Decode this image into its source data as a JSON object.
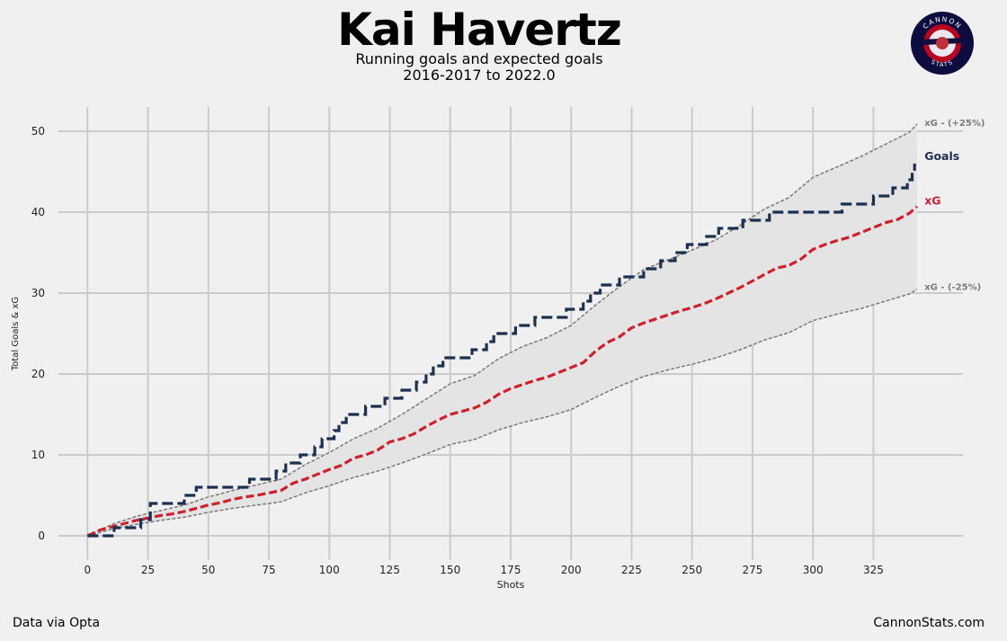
{
  "header": {
    "title": "Kai Havertz",
    "subtitle_line1": "Running goals and expected goals",
    "subtitle_line2": "2016-2017 to 2022.0"
  },
  "logo": {
    "top_text": "CANNON",
    "bottom_text": "STATS",
    "colors": {
      "outer": "#0d0c3f",
      "ring": "#b8001f",
      "inner": "#e8e8ee"
    }
  },
  "footer": {
    "left": "Data via Opta",
    "right": "CannonStats.com"
  },
  "colors": {
    "background": "#f0f0f0",
    "goals": "#1c3050",
    "xg": "#d0202e",
    "band": "#7a7a7a",
    "band_fill": "#e4e4e4",
    "grid": "#cbcbcb"
  },
  "chart_data": {
    "type": "line",
    "xlabel": "Shots",
    "ylabel": "Total Goals & xG",
    "xlim": [
      -12,
      362
    ],
    "ylim": [
      -3,
      53
    ],
    "xticks": [
      0,
      25,
      50,
      75,
      100,
      125,
      150,
      175,
      200,
      225,
      250,
      275,
      300,
      325
    ],
    "yticks": [
      0,
      10,
      20,
      30,
      40,
      50
    ],
    "grid": true,
    "line_labels": {
      "goals": "Goals",
      "xg": "xG",
      "upper": "xG - (+25%)",
      "lower": "xG - (-25%)"
    },
    "goals": {
      "step": true,
      "points": [
        [
          0,
          0
        ],
        [
          11,
          0
        ],
        [
          11,
          1
        ],
        [
          17,
          1
        ],
        [
          22,
          1
        ],
        [
          22,
          2
        ],
        [
          26,
          2
        ],
        [
          26,
          4
        ],
        [
          36,
          4
        ],
        [
          40,
          4
        ],
        [
          40,
          5
        ],
        [
          45,
          5
        ],
        [
          45,
          6
        ],
        [
          67,
          6
        ],
        [
          67,
          7
        ],
        [
          78,
          7
        ],
        [
          78,
          8
        ],
        [
          82,
          8
        ],
        [
          82,
          9
        ],
        [
          88,
          9
        ],
        [
          88,
          10
        ],
        [
          94,
          10
        ],
        [
          94,
          11
        ],
        [
          97,
          11
        ],
        [
          97,
          12
        ],
        [
          102,
          12
        ],
        [
          102,
          13
        ],
        [
          104,
          13
        ],
        [
          104,
          14
        ],
        [
          107,
          14
        ],
        [
          107,
          15
        ],
        [
          115,
          15
        ],
        [
          115,
          16
        ],
        [
          123,
          16
        ],
        [
          123,
          17
        ],
        [
          130,
          17
        ],
        [
          130,
          18
        ],
        [
          136,
          18
        ],
        [
          136,
          19
        ],
        [
          140,
          19
        ],
        [
          140,
          20
        ],
        [
          143,
          20
        ],
        [
          143,
          21
        ],
        [
          147,
          21
        ],
        [
          147,
          22
        ],
        [
          159,
          22
        ],
        [
          159,
          23
        ],
        [
          165,
          23
        ],
        [
          165,
          24
        ],
        [
          168,
          24
        ],
        [
          168,
          25
        ],
        [
          177,
          25
        ],
        [
          177,
          26
        ],
        [
          185,
          26
        ],
        [
          185,
          27
        ],
        [
          198,
          27
        ],
        [
          198,
          28
        ],
        [
          205,
          28
        ],
        [
          205,
          29
        ],
        [
          208,
          29
        ],
        [
          208,
          30
        ],
        [
          212,
          30
        ],
        [
          212,
          31
        ],
        [
          220,
          31
        ],
        [
          220,
          32
        ],
        [
          230,
          32
        ],
        [
          230,
          33
        ],
        [
          237,
          33
        ],
        [
          237,
          34
        ],
        [
          243,
          34
        ],
        [
          243,
          35
        ],
        [
          248,
          35
        ],
        [
          248,
          36
        ],
        [
          256,
          36
        ],
        [
          256,
          37
        ],
        [
          261,
          37
        ],
        [
          261,
          38
        ],
        [
          271,
          38
        ],
        [
          271,
          39
        ],
        [
          282,
          39
        ],
        [
          282,
          40
        ],
        [
          312,
          40
        ],
        [
          312,
          41
        ],
        [
          325,
          41
        ],
        [
          325,
          42
        ],
        [
          333,
          42
        ],
        [
          333,
          43
        ],
        [
          339,
          43
        ],
        [
          339,
          44
        ],
        [
          341,
          44
        ],
        [
          341,
          45
        ],
        [
          342,
          45
        ],
        [
          342,
          46
        ]
      ]
    },
    "xg": {
      "points": [
        [
          0,
          0
        ],
        [
          5,
          0.7
        ],
        [
          10,
          1.1
        ],
        [
          15,
          1.5
        ],
        [
          20,
          1.9
        ],
        [
          25,
          2.2
        ],
        [
          30,
          2.5
        ],
        [
          35,
          2.7
        ],
        [
          40,
          3.0
        ],
        [
          45,
          3.4
        ],
        [
          50,
          3.8
        ],
        [
          55,
          4.1
        ],
        [
          60,
          4.5
        ],
        [
          65,
          4.8
        ],
        [
          70,
          5.0
        ],
        [
          75,
          5.3
        ],
        [
          80,
          5.6
        ],
        [
          85,
          6.5
        ],
        [
          90,
          7.0
        ],
        [
          95,
          7.6
        ],
        [
          100,
          8.2
        ],
        [
          105,
          8.7
        ],
        [
          110,
          9.6
        ],
        [
          115,
          10.0
        ],
        [
          120,
          10.6
        ],
        [
          125,
          11.6
        ],
        [
          130,
          12.0
        ],
        [
          135,
          12.6
        ],
        [
          140,
          13.5
        ],
        [
          145,
          14.3
        ],
        [
          150,
          15.0
        ],
        [
          155,
          15.4
        ],
        [
          160,
          15.8
        ],
        [
          165,
          16.5
        ],
        [
          170,
          17.5
        ],
        [
          175,
          18.2
        ],
        [
          180,
          18.7
        ],
        [
          185,
          19.2
        ],
        [
          190,
          19.6
        ],
        [
          195,
          20.2
        ],
        [
          200,
          20.8
        ],
        [
          205,
          21.4
        ],
        [
          210,
          22.8
        ],
        [
          215,
          23.9
        ],
        [
          220,
          24.6
        ],
        [
          225,
          25.7
        ],
        [
          230,
          26.3
        ],
        [
          235,
          26.8
        ],
        [
          240,
          27.3
        ],
        [
          245,
          27.8
        ],
        [
          250,
          28.2
        ],
        [
          255,
          28.7
        ],
        [
          260,
          29.3
        ],
        [
          265,
          30.0
        ],
        [
          270,
          30.7
        ],
        [
          275,
          31.5
        ],
        [
          280,
          32.3
        ],
        [
          285,
          33.1
        ],
        [
          290,
          33.4
        ],
        [
          295,
          34.2
        ],
        [
          300,
          35.4
        ],
        [
          305,
          36.0
        ],
        [
          310,
          36.5
        ],
        [
          315,
          36.9
        ],
        [
          320,
          37.5
        ],
        [
          325,
          38.1
        ],
        [
          330,
          38.7
        ],
        [
          335,
          39.1
        ],
        [
          340,
          39.9
        ],
        [
          343,
          40.7
        ]
      ]
    },
    "xg_upper": {
      "points": [
        [
          0,
          0
        ],
        [
          10,
          1.4
        ],
        [
          20,
          2.4
        ],
        [
          30,
          3.1
        ],
        [
          40,
          3.8
        ],
        [
          50,
          4.8
        ],
        [
          60,
          5.6
        ],
        [
          70,
          6.3
        ],
        [
          80,
          7.0
        ],
        [
          90,
          8.8
        ],
        [
          100,
          10.3
        ],
        [
          110,
          12.0
        ],
        [
          120,
          13.3
        ],
        [
          130,
          15.0
        ],
        [
          140,
          16.9
        ],
        [
          150,
          18.8
        ],
        [
          160,
          19.8
        ],
        [
          170,
          21.9
        ],
        [
          180,
          23.4
        ],
        [
          190,
          24.5
        ],
        [
          200,
          26.0
        ],
        [
          210,
          28.5
        ],
        [
          220,
          30.8
        ],
        [
          230,
          32.9
        ],
        [
          240,
          34.1
        ],
        [
          250,
          35.3
        ],
        [
          260,
          36.6
        ],
        [
          270,
          38.4
        ],
        [
          280,
          40.4
        ],
        [
          290,
          41.8
        ],
        [
          300,
          44.3
        ],
        [
          310,
          45.6
        ],
        [
          320,
          46.9
        ],
        [
          330,
          48.4
        ],
        [
          340,
          49.9
        ],
        [
          343,
          50.9
        ]
      ]
    },
    "xg_lower": {
      "points": [
        [
          0,
          0
        ],
        [
          10,
          0.8
        ],
        [
          20,
          1.4
        ],
        [
          30,
          1.9
        ],
        [
          40,
          2.3
        ],
        [
          50,
          2.9
        ],
        [
          60,
          3.4
        ],
        [
          70,
          3.8
        ],
        [
          80,
          4.2
        ],
        [
          90,
          5.3
        ],
        [
          100,
          6.2
        ],
        [
          110,
          7.2
        ],
        [
          120,
          8.0
        ],
        [
          130,
          9.0
        ],
        [
          140,
          10.1
        ],
        [
          150,
          11.3
        ],
        [
          160,
          11.9
        ],
        [
          170,
          13.1
        ],
        [
          180,
          14.0
        ],
        [
          190,
          14.7
        ],
        [
          200,
          15.6
        ],
        [
          210,
          17.1
        ],
        [
          220,
          18.5
        ],
        [
          230,
          19.7
        ],
        [
          240,
          20.5
        ],
        [
          250,
          21.2
        ],
        [
          260,
          22.0
        ],
        [
          270,
          23.0
        ],
        [
          280,
          24.2
        ],
        [
          290,
          25.1
        ],
        [
          300,
          26.6
        ],
        [
          310,
          27.4
        ],
        [
          320,
          28.1
        ],
        [
          330,
          29.0
        ],
        [
          340,
          29.9
        ],
        [
          343,
          30.5
        ]
      ]
    }
  }
}
